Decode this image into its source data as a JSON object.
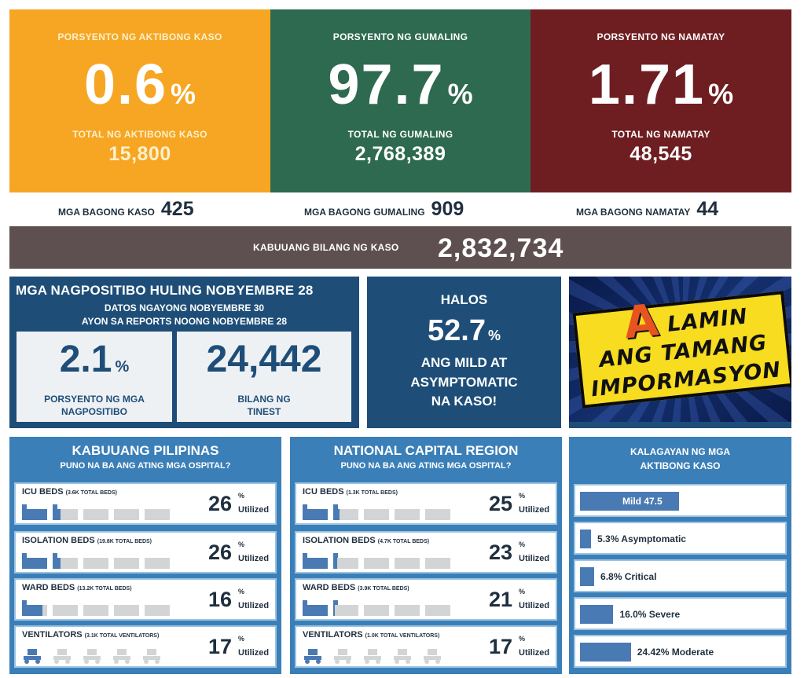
{
  "top": {
    "active": {
      "pct_label": "PORSYENTO NG AKTIBONG KASO",
      "pct": "0.6",
      "pct_sym": "%",
      "total_label": "TOTAL NG AKTIBONG KASO",
      "total": "15,800"
    },
    "recovered": {
      "pct_label": "PORSYENTO NG GUMALING",
      "pct": "97.7",
      "pct_sym": "%",
      "total_label": "TOTAL NG GUMALING",
      "total": "2,768,389"
    },
    "deaths": {
      "pct_label": "PORSYENTO NG NAMATAY",
      "pct": "1.71",
      "pct_sym": "%",
      "total_label": "TOTAL NG NAMATAY",
      "total": "48,545"
    }
  },
  "new": {
    "cases": {
      "label": "MGA BAGONG KASO",
      "value": "425"
    },
    "recovered": {
      "label": "MGA BAGONG GUMALING",
      "value": "909"
    },
    "deaths": {
      "label": "MGA BAGONG NAMATAY",
      "value": "44"
    }
  },
  "total": {
    "label": "KABUUANG BILANG NG KASO",
    "value": "2,832,734"
  },
  "positivity": {
    "title": "MGA NAGPOSITIBO HULING NOBYEMBRE 28",
    "sub1": "DATOS NGAYONG NOBYEMBRE 30",
    "sub2": "AYON SA REPORTS NOONG NOBYEMBRE 28",
    "rate": "2.1",
    "rate_sym": "%",
    "rate_cap1": "PORSYENTO NG MGA",
    "rate_cap2": "NAGPOSITIBO",
    "tested": "24,442",
    "tested_cap1": "BILANG NG",
    "tested_cap2": "TINEST"
  },
  "mild": {
    "halos": "HALOS",
    "pct": "52.7",
    "pct_sym": "%",
    "line1": "ANG MILD AT",
    "line2": "ASYMPTOMATIC",
    "line3": "NA KASO!"
  },
  "alamin": {
    "a": "A",
    "line1": "LAMIN",
    "line2": "ANG TAMANG",
    "line3": "IMPORMASYON"
  },
  "ph": {
    "title": "KABUUANG PILIPINAS",
    "subtitle": "PUNO NA BA ANG ATING MGA OSPITAL?",
    "rows": [
      {
        "name": "ICU BEDS",
        "total": "(3.6K TOTAL BEDS)",
        "pct": "26",
        "fill": 0.26
      },
      {
        "name": "ISOLATION BEDS",
        "total": "(19.8K TOTAL BEDS)",
        "pct": "26",
        "fill": 0.26
      },
      {
        "name": "WARD BEDS",
        "total": "(13.2K TOTAL BEDS)",
        "pct": "16",
        "fill": 0.16
      },
      {
        "name": "VENTILATORS",
        "total": "(3.1K TOTAL VENTILATORS)",
        "pct": "17",
        "fill": 0.17
      }
    ]
  },
  "ncr": {
    "title": "NATIONAL CAPITAL REGION",
    "subtitle": "PUNO NA BA ANG ATING MGA OSPITAL?",
    "rows": [
      {
        "name": "ICU BEDS",
        "total": "(1.3K TOTAL BEDS)",
        "pct": "25",
        "fill": 0.25
      },
      {
        "name": "ISOLATION BEDS",
        "total": "(4.7K TOTAL BEDS)",
        "pct": "23",
        "fill": 0.23
      },
      {
        "name": "WARD BEDS",
        "total": "(3.9K TOTAL BEDS)",
        "pct": "21",
        "fill": 0.21
      },
      {
        "name": "VENTILATORS",
        "total": "(1.0K TOTAL VENTILATORS)",
        "pct": "17",
        "fill": 0.17
      }
    ]
  },
  "pct_symbol": "%",
  "utilized_label": "Utilized",
  "status": {
    "title1": "KALAGAYAN NG MGA",
    "title2": "AKTIBONG KASO",
    "rows": [
      {
        "label": "Mild 47.5",
        "value": 47.5
      },
      {
        "label": "5.3% Asymptomatic",
        "value": 5.3
      },
      {
        "label": "6.8% Critical",
        "value": 6.8
      },
      {
        "label": "16.0% Severe",
        "value": 16.0
      },
      {
        "label": "24.42% Moderate",
        "value": 24.42
      }
    ]
  },
  "colors": {
    "fill": "#4a7ab4",
    "empty": "#d2d4d6"
  }
}
